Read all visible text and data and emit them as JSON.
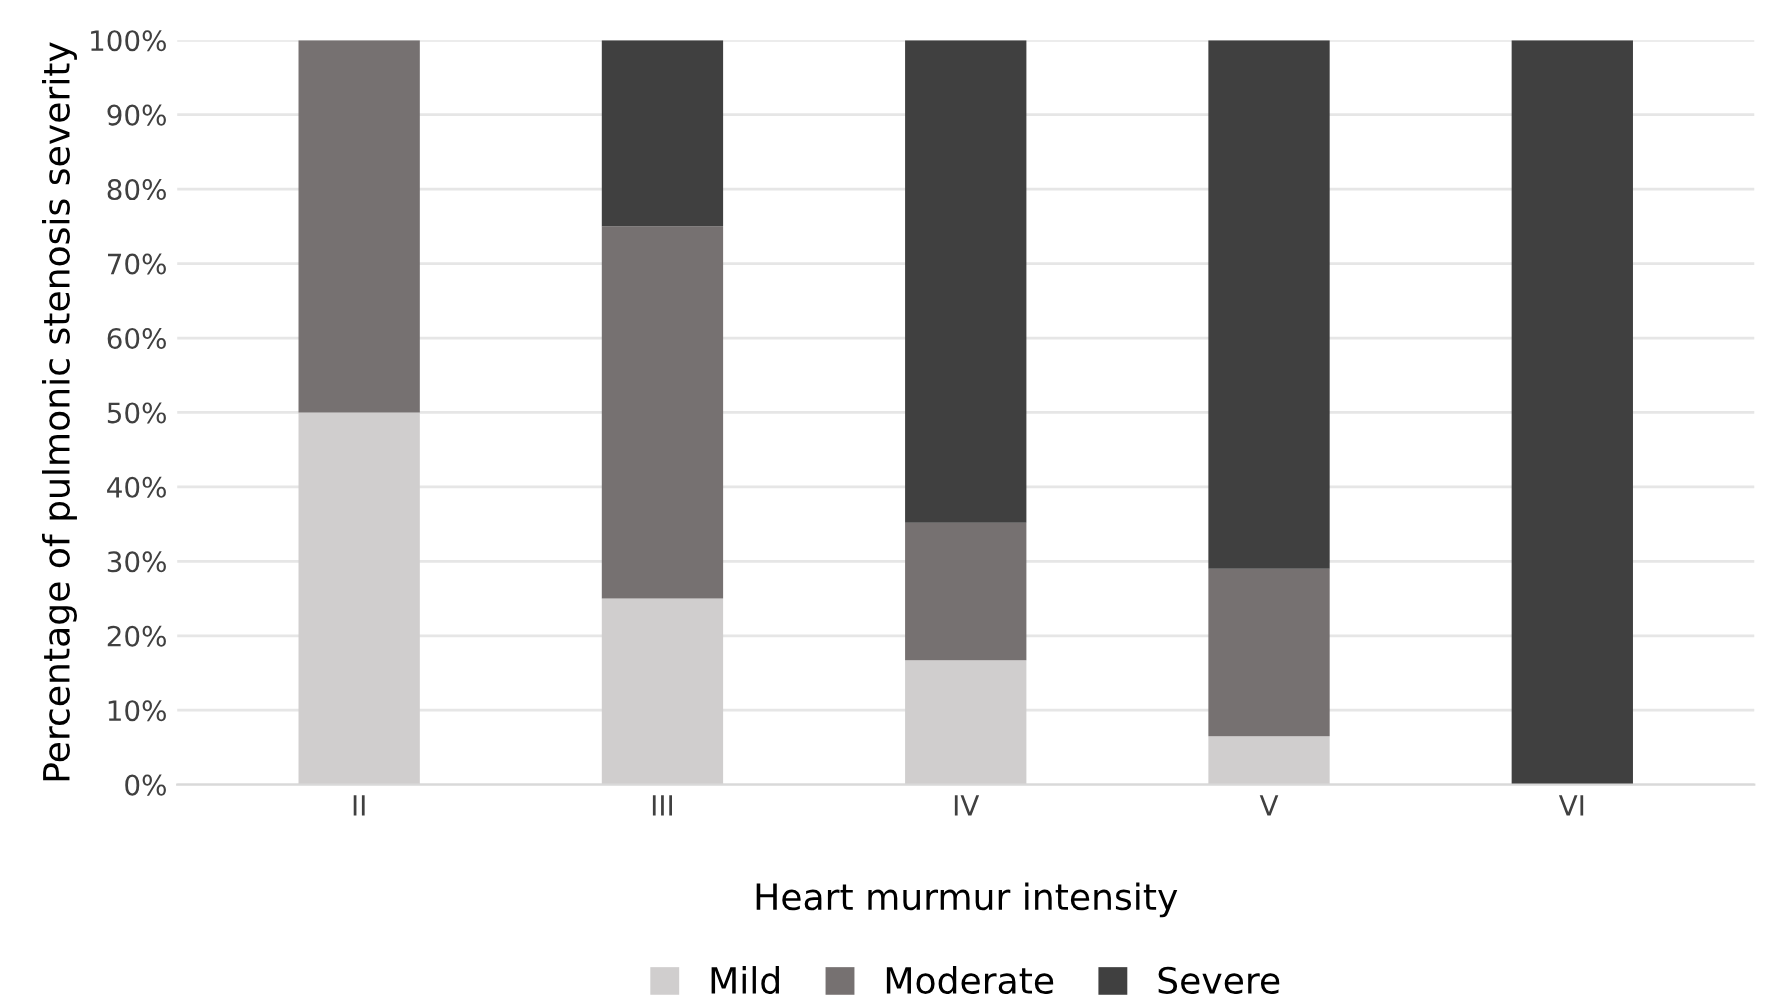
{
  "chart_data": {
    "type": "bar",
    "stacked": true,
    "xlabel": "Heart murmur intensity",
    "ylabel": "Percentage of pulmonic stenosis severity",
    "categories": [
      "II",
      "III",
      "IV",
      "V",
      "VI"
    ],
    "series": [
      {
        "name": "Mild",
        "color": "#d0cece",
        "values": [
          50,
          25,
          16.7,
          6.5,
          0
        ]
      },
      {
        "name": "Moderate",
        "color": "#767171",
        "values": [
          50,
          50,
          18.5,
          22.5,
          0
        ]
      },
      {
        "name": "Severe",
        "color": "#404040",
        "values": [
          0,
          25,
          64.8,
          71,
          100
        ]
      }
    ],
    "ylim": [
      0,
      100
    ],
    "yticks": [
      {
        "value": 0,
        "label": "0%"
      },
      {
        "value": 10,
        "label": "10%"
      },
      {
        "value": 20,
        "label": "20%"
      },
      {
        "value": 30,
        "label": "30%"
      },
      {
        "value": 40,
        "label": "40%"
      },
      {
        "value": 50,
        "label": "50%"
      },
      {
        "value": 60,
        "label": "60%"
      },
      {
        "value": 70,
        "label": "70%"
      },
      {
        "value": 80,
        "label": "80%"
      },
      {
        "value": 90,
        "label": "90%"
      },
      {
        "value": 100,
        "label": "100%"
      }
    ],
    "grid": "y",
    "legend": "bottom"
  }
}
